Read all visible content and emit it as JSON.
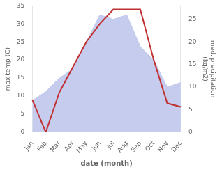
{
  "chart_data": {
    "type": "line",
    "xlabel": "date (month)",
    "ylabel": "max temp (C)",
    "y2label": "med. precipitation\n(kg/m2)",
    "categories": [
      "Jan",
      "Feb",
      "Mar",
      "Apr",
      "May",
      "Jun",
      "Jul",
      "Aug",
      "Sep",
      "Oct",
      "Nov",
      "Dec"
    ],
    "series": [
      {
        "type": "area",
        "axis": "y2",
        "color": "#c5ccee",
        "values": [
          7,
          9,
          12,
          14,
          20,
          26,
          25,
          26,
          19,
          16,
          10,
          11
        ]
      },
      {
        "type": "line",
        "color": "#c03030",
        "values": [
          9,
          0,
          11,
          18,
          25,
          30,
          34,
          34,
          34,
          20,
          8,
          7
        ]
      }
    ],
    "ylim": [
      0,
      35
    ],
    "yticks": [
      0,
      5,
      10,
      15,
      20,
      25,
      30,
      35
    ],
    "y2lim": [
      0,
      28
    ],
    "y2ticks": [
      0,
      5,
      10,
      15,
      20,
      25
    ],
    "grid": false
  }
}
